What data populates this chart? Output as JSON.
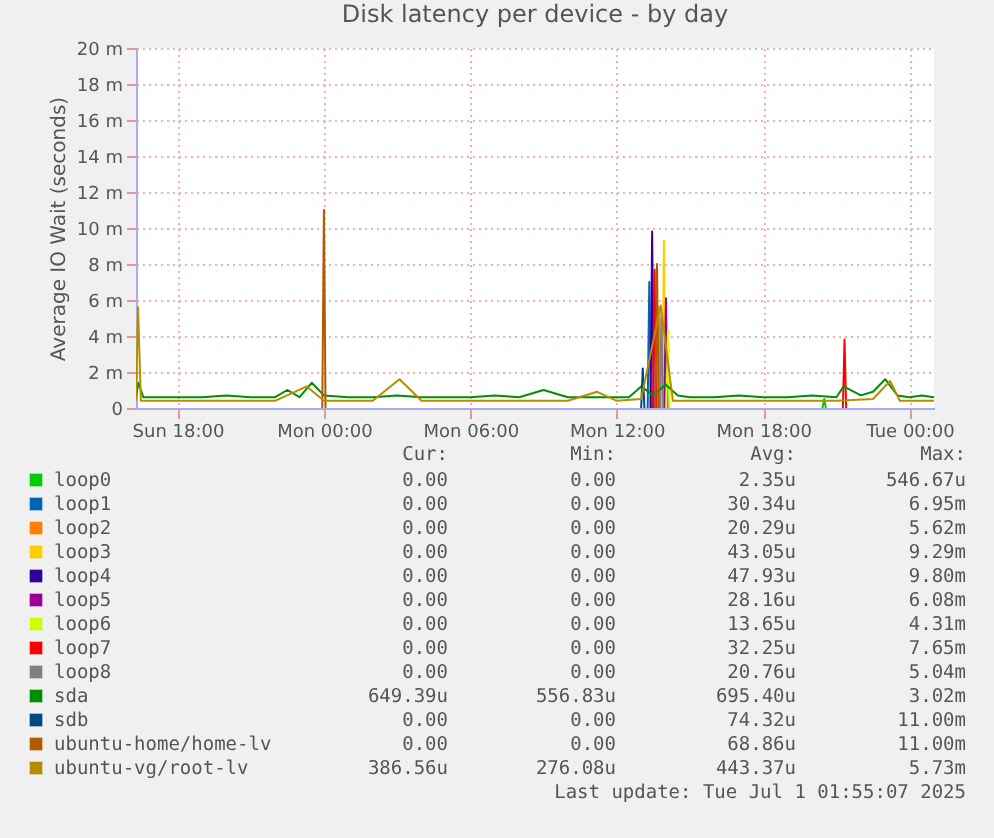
{
  "chart_data": {
    "type": "line",
    "title": "Disk latency per device - by day",
    "ylabel": "Average IO Wait (seconds)",
    "xlim": [
      "2025-06-29T16:18",
      "2025-07-01T01:00"
    ],
    "xticks": [
      {
        "value": "2025-06-29T18:00",
        "label": "Sun 18:00"
      },
      {
        "value": "2025-06-30T00:00",
        "label": "Mon 00:00"
      },
      {
        "value": "2025-06-30T06:00",
        "label": "Mon 06:00"
      },
      {
        "value": "2025-06-30T12:00",
        "label": "Mon 12:00"
      },
      {
        "value": "2025-06-30T18:00",
        "label": "Mon 18:00"
      },
      {
        "value": "2025-07-01T00:00",
        "label": "Tue 00:00"
      }
    ],
    "ylim": [
      0,
      20
    ],
    "yticks": [
      {
        "value": 0,
        "label": "0"
      },
      {
        "value": 2,
        "label": "2 m"
      },
      {
        "value": 4,
        "label": "4 m"
      },
      {
        "value": 6,
        "label": "6 m"
      },
      {
        "value": 8,
        "label": "8 m"
      },
      {
        "value": 10,
        "label": "10 m"
      },
      {
        "value": 12,
        "label": "12 m"
      },
      {
        "value": 14,
        "label": "14 m"
      },
      {
        "value": 16,
        "label": "16 m"
      },
      {
        "value": 18,
        "label": "18 m"
      },
      {
        "value": 20,
        "label": "20 m"
      }
    ],
    "grid": true,
    "legend": "bottom",
    "line_style": "solid",
    "series": [
      {
        "name": "loop0",
        "color": "#00cc00",
        "x": [
          "2025-06-30T20:26",
          "2025-06-30T20:30",
          "2025-06-30T20:34"
        ],
        "values": [
          0,
          0.5,
          0
        ]
      },
      {
        "name": "loop1",
        "color": "#0066b3",
        "x": [
          "2025-06-30T13:16",
          "2025-06-30T13:20",
          "2025-06-30T13:24"
        ],
        "values": [
          0,
          7.0,
          0
        ]
      },
      {
        "name": "loop2",
        "color": "#ff8000",
        "x": [
          "2025-06-30T13:41",
          "2025-06-30T13:45",
          "2025-06-30T13:49"
        ],
        "values": [
          0,
          5.6,
          0
        ]
      },
      {
        "name": "loop3",
        "color": "#ffcc00",
        "x": [
          "2025-06-30T13:52",
          "2025-06-30T13:56",
          "2025-06-30T14:00"
        ],
        "values": [
          0,
          9.3,
          0
        ]
      },
      {
        "name": "loop4",
        "color": "#330099",
        "x": [
          "2025-06-30T13:23",
          "2025-06-30T13:27",
          "2025-06-30T13:31"
        ],
        "values": [
          0,
          9.8,
          0
        ]
      },
      {
        "name": "loop5",
        "color": "#990099",
        "x": [
          "2025-06-30T13:57",
          "2025-06-30T14:01",
          "2025-06-30T14:05"
        ],
        "values": [
          0,
          6.1,
          0
        ]
      },
      {
        "name": "loop6",
        "color": "#ccff00",
        "x": [
          "2025-06-30T14:02",
          "2025-06-30T14:06",
          "2025-06-30T14:10"
        ],
        "values": [
          0,
          4.3,
          0
        ]
      },
      {
        "name": "loop7",
        "color": "#ff0000",
        "x": [
          "2025-06-30T13:29",
          "2025-06-30T13:33",
          "2025-06-30T13:37",
          null,
          "2025-06-30T21:16",
          "2025-06-30T21:20",
          "2025-06-30T21:24"
        ],
        "values": [
          0,
          7.7,
          0,
          null,
          0,
          3.8,
          0
        ]
      },
      {
        "name": "loop8",
        "color": "#808080",
        "x": [
          "2025-06-30T13:46",
          "2025-06-30T13:50",
          "2025-06-30T13:54"
        ],
        "values": [
          0,
          5.0,
          0
        ]
      },
      {
        "name": "sda",
        "color": "#008f00",
        "x": [
          "2025-06-29T16:18",
          "2025-06-29T16:24",
          "2025-06-29T16:36",
          "2025-06-29T17:00",
          "2025-06-29T18:00",
          "2025-06-29T19:00",
          "2025-06-29T20:00",
          "2025-06-29T21:00",
          "2025-06-29T22:00",
          "2025-06-29T22:30",
          "2025-06-29T23:00",
          "2025-06-29T23:30",
          "2025-06-30T00:00",
          "2025-06-30T01:00",
          "2025-06-30T02:00",
          "2025-06-30T03:00",
          "2025-06-30T04:00",
          "2025-06-30T05:00",
          "2025-06-30T06:00",
          "2025-06-30T07:00",
          "2025-06-30T08:00",
          "2025-06-30T09:00",
          "2025-06-30T10:00",
          "2025-06-30T11:00",
          "2025-06-30T12:00",
          "2025-06-30T12:30",
          "2025-06-30T13:00",
          "2025-06-30T13:30",
          "2025-06-30T14:00",
          "2025-06-30T14:30",
          "2025-06-30T15:00",
          "2025-06-30T16:00",
          "2025-06-30T17:00",
          "2025-06-30T18:00",
          "2025-06-30T19:00",
          "2025-06-30T20:00",
          "2025-06-30T21:00",
          "2025-06-30T21:18",
          "2025-06-30T22:00",
          "2025-06-30T22:30",
          "2025-06-30T23:00",
          "2025-06-30T23:30",
          "2025-07-01T00:00",
          "2025-07-01T00:30",
          "2025-07-01T01:00"
        ],
        "values": [
          0.6,
          1.4,
          0.6,
          0.6,
          0.6,
          0.6,
          0.7,
          0.6,
          0.6,
          1.0,
          0.6,
          1.4,
          0.7,
          0.6,
          0.6,
          0.7,
          0.6,
          0.6,
          0.6,
          0.7,
          0.6,
          1.0,
          0.6,
          0.6,
          0.6,
          0.6,
          1.2,
          0.7,
          1.3,
          0.7,
          0.6,
          0.6,
          0.7,
          0.6,
          0.6,
          0.7,
          0.6,
          1.2,
          0.7,
          0.9,
          1.6,
          0.7,
          0.6,
          0.7,
          0.6
        ]
      },
      {
        "name": "sdb",
        "color": "#00487d",
        "x": [
          "2025-06-30T13:00",
          "2025-06-30T13:04",
          "2025-06-30T13:08"
        ],
        "values": [
          0,
          2.2,
          0
        ]
      },
      {
        "name": "ubuntu-home/home-lv",
        "color": "#b35a00",
        "x": [
          "2025-06-29T23:56",
          "2025-06-30T00:00",
          "2025-06-30T00:04",
          null,
          "2025-06-30T13:35",
          "2025-06-30T13:39",
          "2025-06-30T13:43"
        ],
        "values": [
          0,
          11.0,
          0,
          null,
          0,
          8.0,
          0
        ]
      },
      {
        "name": "ubuntu-vg/root-lv",
        "color": "#b38f00",
        "x": [
          "2025-06-29T16:18",
          "2025-06-29T16:23",
          "2025-06-29T16:30",
          "2025-06-29T17:00",
          "2025-06-29T18:00",
          "2025-06-29T20:00",
          "2025-06-29T22:00",
          "2025-06-29T23:18",
          "2025-06-30T00:00",
          "2025-06-30T02:00",
          "2025-06-30T03:06",
          "2025-06-30T04:00",
          "2025-06-30T06:00",
          "2025-06-30T08:00",
          "2025-06-30T10:00",
          "2025-06-30T11:12",
          "2025-06-30T12:00",
          "2025-06-30T13:00",
          "2025-06-30T13:48",
          "2025-06-30T14:18",
          "2025-06-30T15:00",
          "2025-06-30T17:00",
          "2025-06-30T19:00",
          "2025-06-30T21:00",
          "2025-06-30T22:30",
          "2025-06-30T23:12",
          "2025-06-30T23:36",
          "2025-07-01T00:00",
          "2025-07-01T01:00"
        ],
        "values": [
          0.4,
          5.6,
          0.4,
          0.4,
          0.4,
          0.4,
          0.4,
          1.2,
          0.4,
          0.4,
          1.6,
          0.4,
          0.4,
          0.4,
          0.4,
          0.9,
          0.4,
          0.5,
          5.7,
          0.4,
          0.4,
          0.4,
          0.4,
          0.4,
          0.5,
          1.5,
          0.4,
          0.4,
          0.4
        ]
      }
    ],
    "annotations": [
      "Cur:",
      "Min:",
      "Avg:",
      "Max:",
      "0.00",
      "0.00",
      "2.35u",
      "546.67u",
      "0.00",
      "0.00",
      "30.34u",
      "6.95m",
      "0.00",
      "0.00",
      "20.29u",
      "5.62m",
      "0.00",
      "0.00",
      "43.05u",
      "9.29m",
      "0.00",
      "0.00",
      "47.93u",
      "9.80m",
      "0.00",
      "0.00",
      "28.16u",
      "6.08m",
      "0.00",
      "0.00",
      "13.65u",
      "4.31m",
      "0.00",
      "0.00",
      "32.25u",
      "7.65m",
      "0.00",
      "0.00",
      "20.76u",
      "5.04m",
      "649.39u",
      "556.83u",
      "695.40u",
      "3.02m",
      "0.00",
      "0.00",
      "74.32u",
      "11.00m",
      "0.00",
      "0.00",
      "68.86u",
      "11.00m",
      "386.56u",
      "276.08u",
      "443.37u",
      "5.73m",
      "Last update: Tue Jul  1 01:55:07 2025"
    ]
  }
}
